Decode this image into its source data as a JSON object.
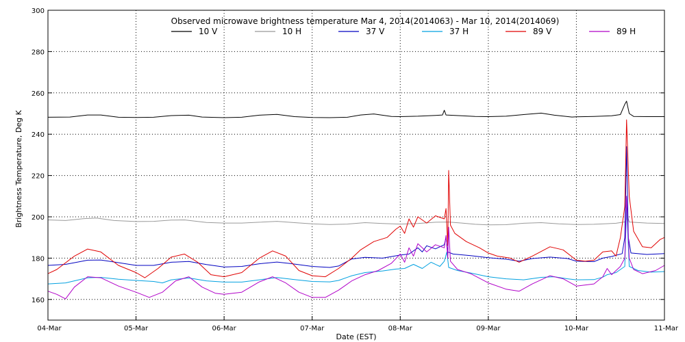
{
  "chart_data": {
    "type": "line",
    "title": "Observed microwave brightness temperature Mar  4, 2014(2014063) - Mar 10, 2014(2014069)",
    "xlabel": "Date (EST)",
    "ylabel": "Brightness Temperature, Deg K",
    "ylim": [
      150,
      300
    ],
    "xlim": [
      "04-Mar",
      "11-Mar"
    ],
    "x_ticks": [
      "04-Mar",
      "05-Mar",
      "06-Mar",
      "07-Mar",
      "08-Mar",
      "09-Mar",
      "10-Mar",
      "11-Mar"
    ],
    "y_ticks": [
      160,
      180,
      200,
      220,
      240,
      260,
      280,
      300
    ],
    "grid": true,
    "legend_position": "top",
    "gaps": [
      [
        6.95,
        7.0
      ],
      [
        6.95,
        6.98
      ]
    ],
    "series": [
      {
        "name": "10 V",
        "color": "#000000",
        "points": [
          [
            0,
            248.2
          ],
          [
            0.25,
            248.3
          ],
          [
            0.45,
            249.3
          ],
          [
            0.6,
            249.3
          ],
          [
            0.8,
            248.2
          ],
          [
            1.0,
            248.1
          ],
          [
            1.2,
            248.2
          ],
          [
            1.4,
            249.0
          ],
          [
            1.6,
            249.2
          ],
          [
            1.75,
            248.3
          ],
          [
            2.0,
            248.0
          ],
          [
            2.2,
            248.2
          ],
          [
            2.4,
            249.2
          ],
          [
            2.6,
            249.6
          ],
          [
            2.8,
            248.5
          ],
          [
            3.0,
            248.1
          ],
          [
            3.2,
            248.0
          ],
          [
            3.4,
            248.2
          ],
          [
            3.55,
            249.3
          ],
          [
            3.7,
            249.8
          ],
          [
            3.9,
            248.6
          ],
          [
            4.0,
            248.5
          ],
          [
            4.2,
            248.7
          ],
          [
            4.4,
            249.1
          ],
          [
            4.48,
            249.3
          ],
          [
            4.5,
            251.6
          ],
          [
            4.52,
            249.3
          ],
          [
            4.7,
            248.9
          ],
          [
            4.85,
            248.6
          ],
          [
            5.0,
            248.5
          ],
          [
            5.2,
            248.7
          ],
          [
            5.4,
            249.5
          ],
          [
            5.6,
            250.2
          ],
          [
            5.75,
            249.2
          ],
          [
            5.95,
            248.3
          ],
          [
            6.0,
            248.4
          ],
          [
            6.2,
            248.6
          ],
          [
            6.4,
            248.9
          ],
          [
            6.5,
            249.5
          ],
          [
            6.55,
            254.5
          ],
          [
            6.57,
            256.0
          ],
          [
            6.6,
            250.0
          ],
          [
            6.65,
            248.6
          ],
          [
            6.8,
            248.5
          ],
          [
            7.0,
            248.5
          ]
        ]
      },
      {
        "name": "10 H",
        "color": "#999999",
        "points": [
          [
            0,
            198.5
          ],
          [
            0.2,
            198.2
          ],
          [
            0.4,
            199.1
          ],
          [
            0.55,
            199.4
          ],
          [
            0.75,
            198.2
          ],
          [
            1.0,
            197.7
          ],
          [
            1.2,
            197.8
          ],
          [
            1.4,
            198.4
          ],
          [
            1.55,
            198.5
          ],
          [
            1.8,
            197.3
          ],
          [
            2.0,
            197.0
          ],
          [
            2.2,
            197.0
          ],
          [
            2.4,
            197.4
          ],
          [
            2.6,
            197.8
          ],
          [
            2.8,
            197.2
          ],
          [
            3.0,
            196.6
          ],
          [
            3.2,
            196.3
          ],
          [
            3.4,
            196.5
          ],
          [
            3.6,
            197.2
          ],
          [
            3.8,
            196.8
          ],
          [
            4.0,
            196.5
          ],
          [
            4.2,
            196.8
          ],
          [
            4.4,
            197.4
          ],
          [
            4.55,
            197.5
          ],
          [
            4.7,
            197.0
          ],
          [
            4.85,
            196.4
          ],
          [
            5.0,
            196.1
          ],
          [
            5.2,
            196.2
          ],
          [
            5.4,
            196.9
          ],
          [
            5.6,
            197.2
          ],
          [
            5.8,
            196.6
          ],
          [
            6.0,
            196.3
          ],
          [
            6.2,
            196.4
          ],
          [
            6.45,
            196.9
          ],
          [
            6.56,
            197.6
          ],
          [
            6.58,
            200.5
          ],
          [
            6.6,
            197.5
          ],
          [
            6.8,
            197.0
          ],
          [
            7.0,
            196.8
          ]
        ]
      },
      {
        "name": "37 V",
        "color": "#0000c0",
        "points": [
          [
            0,
            176.5
          ],
          [
            0.2,
            177.0
          ],
          [
            0.45,
            179.0
          ],
          [
            0.6,
            179.1
          ],
          [
            0.8,
            177.8
          ],
          [
            1.0,
            176.5
          ],
          [
            1.2,
            176.5
          ],
          [
            1.4,
            178.0
          ],
          [
            1.6,
            178.4
          ],
          [
            1.8,
            176.9
          ],
          [
            2.0,
            175.7
          ],
          [
            2.2,
            176.0
          ],
          [
            2.4,
            177.3
          ],
          [
            2.6,
            178.1
          ],
          [
            2.75,
            177.4
          ],
          [
            3.0,
            176.0
          ],
          [
            3.2,
            175.5
          ],
          [
            3.3,
            176.2
          ],
          [
            3.45,
            179.6
          ],
          [
            3.6,
            180.4
          ],
          [
            3.8,
            180.0
          ],
          [
            4.0,
            181.5
          ],
          [
            4.1,
            182.0
          ],
          [
            4.2,
            185.0
          ],
          [
            4.25,
            183.0
          ],
          [
            4.3,
            186.0
          ],
          [
            4.4,
            184.5
          ],
          [
            4.5,
            186.5
          ],
          [
            4.52,
            190.0
          ],
          [
            4.54,
            183.0
          ],
          [
            4.6,
            182.0
          ],
          [
            4.8,
            181.2
          ],
          [
            5.0,
            180.2
          ],
          [
            5.2,
            179.5
          ],
          [
            5.35,
            178.5
          ],
          [
            5.5,
            179.8
          ],
          [
            5.7,
            180.5
          ],
          [
            5.9,
            179.8
          ],
          [
            6.0,
            178.5
          ],
          [
            6.2,
            178.3
          ],
          [
            6.3,
            180.0
          ],
          [
            6.4,
            180.8
          ],
          [
            6.52,
            182.2
          ],
          [
            6.55,
            190.0
          ],
          [
            6.57,
            234.0
          ],
          [
            6.59,
            190.0
          ],
          [
            6.62,
            182.5
          ],
          [
            6.8,
            181.8
          ],
          [
            7.0,
            182.2
          ]
        ]
      },
      {
        "name": "37 H",
        "color": "#00a0e0",
        "points": [
          [
            0,
            167.5
          ],
          [
            0.2,
            168.0
          ],
          [
            0.45,
            170.5
          ],
          [
            0.6,
            170.7
          ],
          [
            0.8,
            169.8
          ],
          [
            1.0,
            169.2
          ],
          [
            1.2,
            168.7
          ],
          [
            1.3,
            168.0
          ],
          [
            1.4,
            169.5
          ],
          [
            1.6,
            170.4
          ],
          [
            1.8,
            169.0
          ],
          [
            2.0,
            168.4
          ],
          [
            2.2,
            168.4
          ],
          [
            2.4,
            169.5
          ],
          [
            2.6,
            170.6
          ],
          [
            2.8,
            169.6
          ],
          [
            3.0,
            168.7
          ],
          [
            3.2,
            168.5
          ],
          [
            3.3,
            169.2
          ],
          [
            3.45,
            171.5
          ],
          [
            3.6,
            173.0
          ],
          [
            3.8,
            173.8
          ],
          [
            3.95,
            174.7
          ],
          [
            4.05,
            175.0
          ],
          [
            4.15,
            177.0
          ],
          [
            4.25,
            175.0
          ],
          [
            4.35,
            178.0
          ],
          [
            4.45,
            176.0
          ],
          [
            4.5,
            178.5
          ],
          [
            4.53,
            183.0
          ],
          [
            4.55,
            175.5
          ],
          [
            4.65,
            174.0
          ],
          [
            4.8,
            172.8
          ],
          [
            5.0,
            171.0
          ],
          [
            5.2,
            170.0
          ],
          [
            5.4,
            169.5
          ],
          [
            5.6,
            170.7
          ],
          [
            5.75,
            171.0
          ],
          [
            5.9,
            170.0
          ],
          [
            6.0,
            169.5
          ],
          [
            6.2,
            169.6
          ],
          [
            6.3,
            170.8
          ],
          [
            6.35,
            172.0
          ],
          [
            6.45,
            173.0
          ],
          [
            6.55,
            176.0
          ],
          [
            6.57,
            205.0
          ],
          [
            6.6,
            176.0
          ],
          [
            6.7,
            174.0
          ],
          [
            6.85,
            173.2
          ],
          [
            7.0,
            173.5
          ]
        ]
      },
      {
        "name": "89 V",
        "color": "#e00000",
        "points": [
          [
            0,
            172.5
          ],
          [
            0.1,
            174.5
          ],
          [
            0.3,
            181.0
          ],
          [
            0.45,
            184.4
          ],
          [
            0.6,
            183.0
          ],
          [
            0.8,
            176.5
          ],
          [
            1.0,
            173.0
          ],
          [
            1.1,
            170.5
          ],
          [
            1.25,
            175.0
          ],
          [
            1.4,
            180.5
          ],
          [
            1.55,
            182.0
          ],
          [
            1.7,
            178.0
          ],
          [
            1.85,
            172.0
          ],
          [
            2.0,
            171.0
          ],
          [
            2.2,
            173.0
          ],
          [
            2.4,
            180.0
          ],
          [
            2.55,
            183.5
          ],
          [
            2.7,
            181.0
          ],
          [
            2.85,
            174.0
          ],
          [
            3.0,
            171.5
          ],
          [
            3.15,
            171.0
          ],
          [
            3.3,
            175.0
          ],
          [
            3.45,
            180.0
          ],
          [
            3.55,
            184.0
          ],
          [
            3.7,
            188.0
          ],
          [
            3.85,
            190.0
          ],
          [
            3.95,
            194.0
          ],
          [
            4.0,
            195.5
          ],
          [
            4.05,
            192.0
          ],
          [
            4.1,
            199.0
          ],
          [
            4.15,
            195.0
          ],
          [
            4.2,
            200.0
          ],
          [
            4.3,
            197.0
          ],
          [
            4.4,
            200.5
          ],
          [
            4.5,
            199.0
          ],
          [
            4.52,
            204.0
          ],
          [
            4.54,
            186.0
          ],
          [
            4.55,
            222.5
          ],
          [
            4.57,
            196.0
          ],
          [
            4.62,
            192.0
          ],
          [
            4.75,
            188.0
          ],
          [
            4.9,
            185.0
          ],
          [
            5.0,
            182.5
          ],
          [
            5.1,
            181.0
          ],
          [
            5.25,
            180.0
          ],
          [
            5.35,
            178.0
          ],
          [
            5.5,
            181.0
          ],
          [
            5.7,
            185.5
          ],
          [
            5.85,
            184.0
          ],
          [
            6.0,
            179.0
          ],
          [
            6.1,
            178.5
          ],
          [
            6.2,
            179.0
          ],
          [
            6.3,
            183.0
          ],
          [
            6.4,
            183.5
          ],
          [
            6.45,
            181.0
          ],
          [
            6.5,
            190.0
          ],
          [
            6.55,
            205.0
          ],
          [
            6.57,
            247.0
          ],
          [
            6.6,
            210.0
          ],
          [
            6.65,
            193.0
          ],
          [
            6.75,
            185.5
          ],
          [
            6.85,
            185.0
          ],
          [
            6.95,
            189.0
          ],
          [
            7.0,
            190.0
          ]
        ]
      },
      {
        "name": "89 H",
        "color": "#b000c8",
        "points": [
          [
            0,
            164.0
          ],
          [
            0.1,
            162.5
          ],
          [
            0.2,
            160.3
          ],
          [
            0.3,
            166.0
          ],
          [
            0.45,
            171.0
          ],
          [
            0.6,
            170.5
          ],
          [
            0.8,
            166.5
          ],
          [
            1.0,
            163.5
          ],
          [
            1.15,
            161.0
          ],
          [
            1.3,
            163.5
          ],
          [
            1.45,
            169.0
          ],
          [
            1.6,
            171.0
          ],
          [
            1.75,
            166.0
          ],
          [
            1.9,
            163.0
          ],
          [
            2.0,
            162.5
          ],
          [
            2.2,
            163.5
          ],
          [
            2.4,
            168.5
          ],
          [
            2.55,
            171.0
          ],
          [
            2.7,
            168.0
          ],
          [
            2.85,
            163.5
          ],
          [
            3.0,
            161.0
          ],
          [
            3.15,
            161.0
          ],
          [
            3.3,
            164.5
          ],
          [
            3.45,
            169.0
          ],
          [
            3.6,
            172.0
          ],
          [
            3.75,
            174.0
          ],
          [
            3.9,
            177.5
          ],
          [
            4.0,
            182.0
          ],
          [
            4.05,
            178.0
          ],
          [
            4.1,
            185.0
          ],
          [
            4.15,
            181.0
          ],
          [
            4.2,
            187.0
          ],
          [
            4.3,
            183.0
          ],
          [
            4.4,
            186.5
          ],
          [
            4.5,
            185.0
          ],
          [
            4.52,
            191.0
          ],
          [
            4.54,
            180.0
          ],
          [
            4.55,
            195.0
          ],
          [
            4.57,
            178.5
          ],
          [
            4.65,
            174.5
          ],
          [
            4.8,
            172.5
          ],
          [
            5.0,
            168.0
          ],
          [
            5.2,
            165.0
          ],
          [
            5.35,
            164.0
          ],
          [
            5.5,
            167.5
          ],
          [
            5.7,
            171.5
          ],
          [
            5.85,
            170.0
          ],
          [
            6.0,
            166.5
          ],
          [
            6.2,
            167.5
          ],
          [
            6.3,
            171.0
          ],
          [
            6.35,
            175.0
          ],
          [
            6.4,
            172.0
          ],
          [
            6.5,
            176.0
          ],
          [
            6.55,
            180.0
          ],
          [
            6.57,
            210.0
          ],
          [
            6.6,
            180.0
          ],
          [
            6.65,
            174.5
          ],
          [
            6.75,
            172.5
          ],
          [
            6.9,
            174.0
          ],
          [
            7.0,
            176.5
          ]
        ]
      }
    ]
  }
}
